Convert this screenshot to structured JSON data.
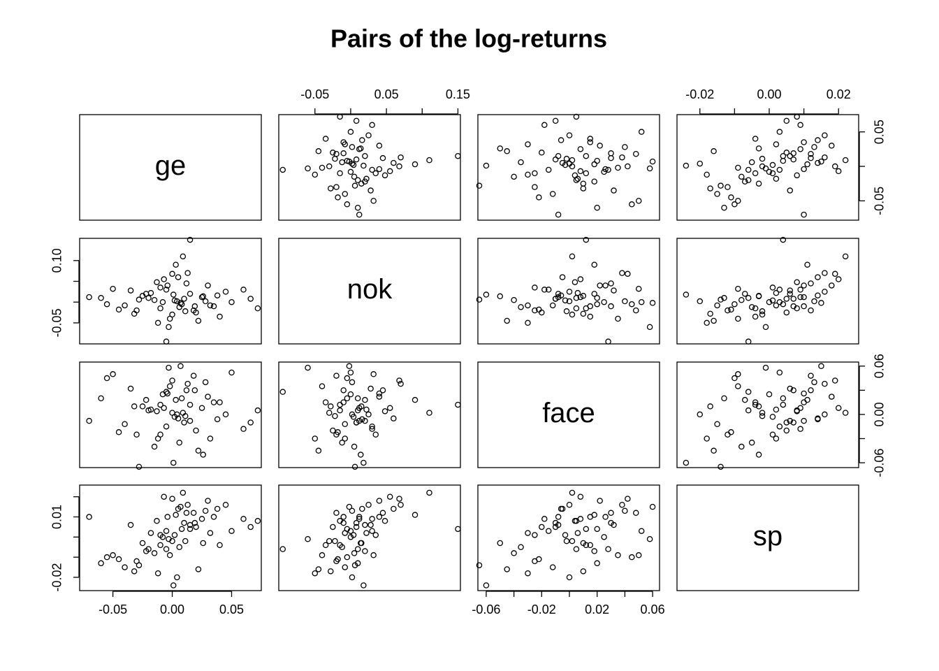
{
  "chart_data": {
    "type": "scatter-matrix",
    "title": "Pairs of the log-returns",
    "variables": [
      {
        "name": "ge",
        "lim": [
          -0.078,
          0.075
        ],
        "xticks": [
          -0.05,
          {
            "value": 0,
            "label": "0.00"
          },
          0.05
        ],
        "yticks": [
          -0.05,
          {
            "value": 0,
            "label": null
          },
          0.05
        ],
        "values": [
          0.002,
          -0.01,
          0.015,
          -0.02,
          0.008,
          -0.005,
          0.025,
          -0.03,
          0.012,
          0,
          -0.015,
          0.035,
          0.005,
          -0.008,
          0.02,
          -0.025,
          0.01,
          -0.002,
          0.045,
          -0.04,
          0.003,
          -0.012,
          0.028,
          -0.018,
          0.006,
          0.06,
          -0.055,
          0.015,
          -0.005,
          0.03,
          -0.07,
          0.072,
          0.001,
          -0.003,
          0.009,
          -0.028,
          0.018,
          -0.01,
          0.04,
          -0.035,
          0.004,
          -0.007,
          0.022,
          0.05,
          -0.045,
          0.013,
          -0.022,
          0.032,
          -0.06,
          0.007,
          0.066,
          -0.013,
          0.026,
          -0.032,
          0,
          0.011,
          -0.004,
          0.038,
          -0.05,
          0.019
        ]
      },
      {
        "name": "nok",
        "lim": [
          -0.1006,
          0.1535
        ],
        "xticks": [
          -0.05,
          {
            "value": 0,
            "label": null
          },
          0.05,
          {
            "value": 0.1,
            "label": null
          },
          0.15
        ],
        "yticks": [
          -0.05,
          {
            "value": 0,
            "label": null
          },
          {
            "value": 0.05,
            "label": null
          },
          {
            "value": 0.1,
            "label": "0.10"
          }
        ],
        "values": [
          0.004,
          -0.015,
          0.02,
          0.01,
          -0.005,
          0.03,
          0.012,
          -0.02,
          0.045,
          -0.03,
          0.005,
          -0.01,
          0.06,
          0,
          -0.025,
          0.015,
          0.008,
          -0.04,
          0.025,
          -0.008,
          0.09,
          -0.05,
          0.002,
          0.022,
          -0.012,
          0.03,
          -0.005,
          0.15,
          -0.095,
          0.04,
          0.012,
          -0.015,
          0.018,
          -0.06,
          0.11,
          0.006,
          -0.02,
          0.035,
          -0.035,
          0.028,
          0.002,
          0.055,
          -0.045,
          0,
          -0.018,
          0.07,
          0.02,
          -0.008,
          0.01,
          -0.002,
          0.008,
          0.048,
          0.014,
          -0.028,
          0.068,
          -0.022,
          0.04,
          0.016,
          0.032,
          -0.01
        ]
      },
      {
        "name": "face",
        "lim": [
          -0.066,
          0.065
        ],
        "xticks": [
          -0.06,
          {
            "value": -0.04,
            "label": null
          },
          -0.02,
          {
            "value": 0,
            "label": null
          },
          0.02,
          {
            "value": 0.04,
            "label": null
          },
          0.06
        ],
        "yticks": [
          -0.06,
          {
            "value": -0.03,
            "label": null
          },
          {
            "value": 0,
            "label": "0.00"
          },
          {
            "value": 0.03,
            "label": null
          },
          0.06
        ],
        "values": [
          -0.003,
          0.012,
          -0.008,
          0.005,
          0.02,
          -0.015,
          0.008,
          -0.025,
          0.03,
          0.002,
          -0.04,
          0.015,
          -0.005,
          0.025,
          -0.02,
          0.01,
          -0.01,
          0.035,
          0,
          -0.012,
          0.018,
          -0.03,
          0.04,
          0.006,
          -0.035,
          -0.018,
          0.045,
          0.012,
          0.028,
          0.022,
          -0.008,
          0.005,
          -0.06,
          0.058,
          0.002,
          -0.065,
          0.048,
          -0.025,
          0.015,
          0.032,
          0,
          0.008,
          -0.045,
          0.052,
          -0.022,
          0.038,
          0.018,
          -0.03,
          0.02,
          0.06,
          -0.01,
          0.004,
          -0.05,
          0.01,
          0.042,
          -0.002,
          0.026,
          -0.006,
          0.05,
          0.03
        ]
      },
      {
        "name": "sp",
        "lim": [
          -0.0266,
          0.0258
        ],
        "xticks": [
          -0.02,
          {
            "value": -0.01,
            "label": null
          },
          {
            "value": 0,
            "label": "0.00"
          },
          {
            "value": 0.01,
            "label": null
          },
          0.02
        ],
        "yticks": [
          -0.02,
          {
            "value": -0.01,
            "label": null
          },
          {
            "value": 0,
            "label": null
          },
          0.01,
          {
            "value": 0.02,
            "label": null
          }
        ],
        "values": [
          0.001,
          -0.004,
          0.006,
          -0.006,
          0.004,
          0.003,
          0.009,
          -0.012,
          0.012,
          -0.002,
          -0.008,
          0.01,
          0.014,
          0,
          0.005,
          -0.003,
          0.007,
          -0.009,
          0.016,
          -0.015,
          0.011,
          -0.018,
          0.013,
          0.002,
          -0.005,
          0.009,
          -0.01,
          0.004,
          -0.006,
          0.018,
          0.01,
          0.008,
          -0.024,
          -0.001,
          0.022,
          -0.014,
          0.012,
          0.001,
          -0.004,
          0.006,
          -0.02,
          0.02,
          -0.016,
          0.003,
          -0.011,
          0.016,
          -0.007,
          0.002,
          -0.013,
          0.015,
          0.005,
          0.008,
          -0.003,
          -0.017,
          0.019,
          -0.002,
          0.01,
          0.014,
          -0.009,
          0.007
        ]
      }
    ]
  }
}
